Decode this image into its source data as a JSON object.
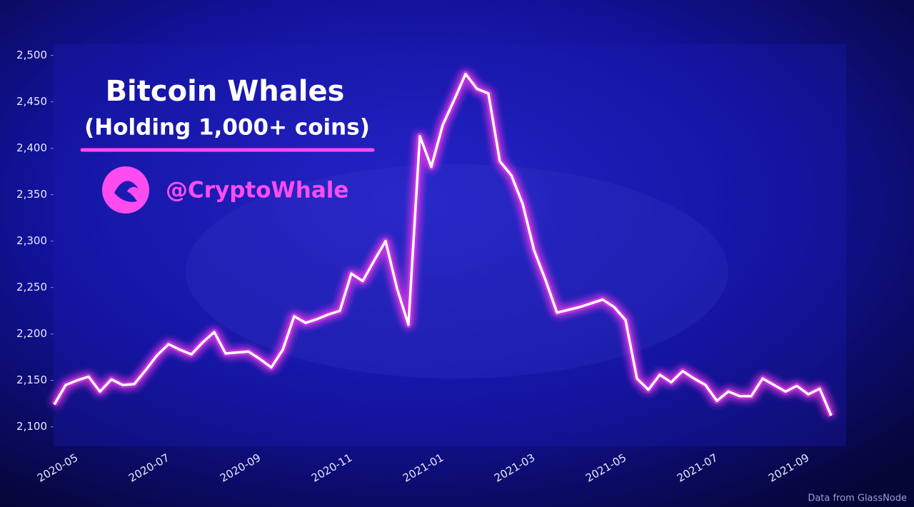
{
  "chart_data": {
    "type": "line",
    "title": "Bitcoin Whales",
    "subtitle": "(Holding 1,000+ coins)",
    "handle": "@CryptoWhale",
    "source": "Data from GlassNode",
    "color": "#ffffff",
    "glow_color": "#ff3cf0",
    "categories": [
      null,
      null,
      "2020-05",
      null,
      null,
      null,
      null,
      null,
      null,
      null,
      "2020-07",
      null,
      null,
      null,
      null,
      null,
      null,
      null,
      "2020-09",
      null,
      null,
      null,
      null,
      null,
      null,
      null,
      "2020-11",
      null,
      null,
      null,
      null,
      null,
      null,
      null,
      "2021-01",
      null,
      null,
      null,
      null,
      null,
      null,
      null,
      "2021-03",
      null,
      null,
      null,
      null,
      null,
      null,
      null,
      "2021-05",
      null,
      null,
      null,
      null,
      null,
      null,
      null,
      "2021-07",
      null,
      null,
      null,
      null,
      null,
      null,
      null,
      "2021-09",
      null,
      null
    ],
    "values": [
      2124,
      2145,
      2150,
      2154,
      2138,
      2151,
      2145,
      2146,
      2161,
      2177,
      2189,
      2183,
      2178,
      2191,
      2202,
      2179,
      2180,
      2181,
      2173,
      2164,
      2183,
      2219,
      2212,
      2216,
      2221,
      2225,
      2265,
      2257,
      2279,
      2300,
      2249,
      2210,
      2413,
      2380,
      2425,
      2452,
      2480,
      2464,
      2459,
      2386,
      2371,
      2340,
      2290,
      2258,
      2223,
      2226,
      2229,
      2233,
      2237,
      2229,
      2215,
      2152,
      2140,
      2156,
      2148,
      2160,
      2152,
      2145,
      2128,
      2138,
      2133,
      2133,
      2152,
      2145,
      2138,
      2144,
      2135,
      2141,
      2112
    ],
    "ylim": [
      2079,
      2512
    ],
    "yticks": [
      {
        "value": 2100,
        "label": "2,100"
      },
      {
        "value": 2150,
        "label": "2,150"
      },
      {
        "value": 2200,
        "label": "2,200"
      },
      {
        "value": 2250,
        "label": "2,250"
      },
      {
        "value": 2300,
        "label": "2,300"
      },
      {
        "value": 2350,
        "label": "2,350"
      },
      {
        "value": 2400,
        "label": "2,400"
      },
      {
        "value": 2450,
        "label": "2,450"
      },
      {
        "value": 2500,
        "label": "2,500"
      }
    ]
  }
}
